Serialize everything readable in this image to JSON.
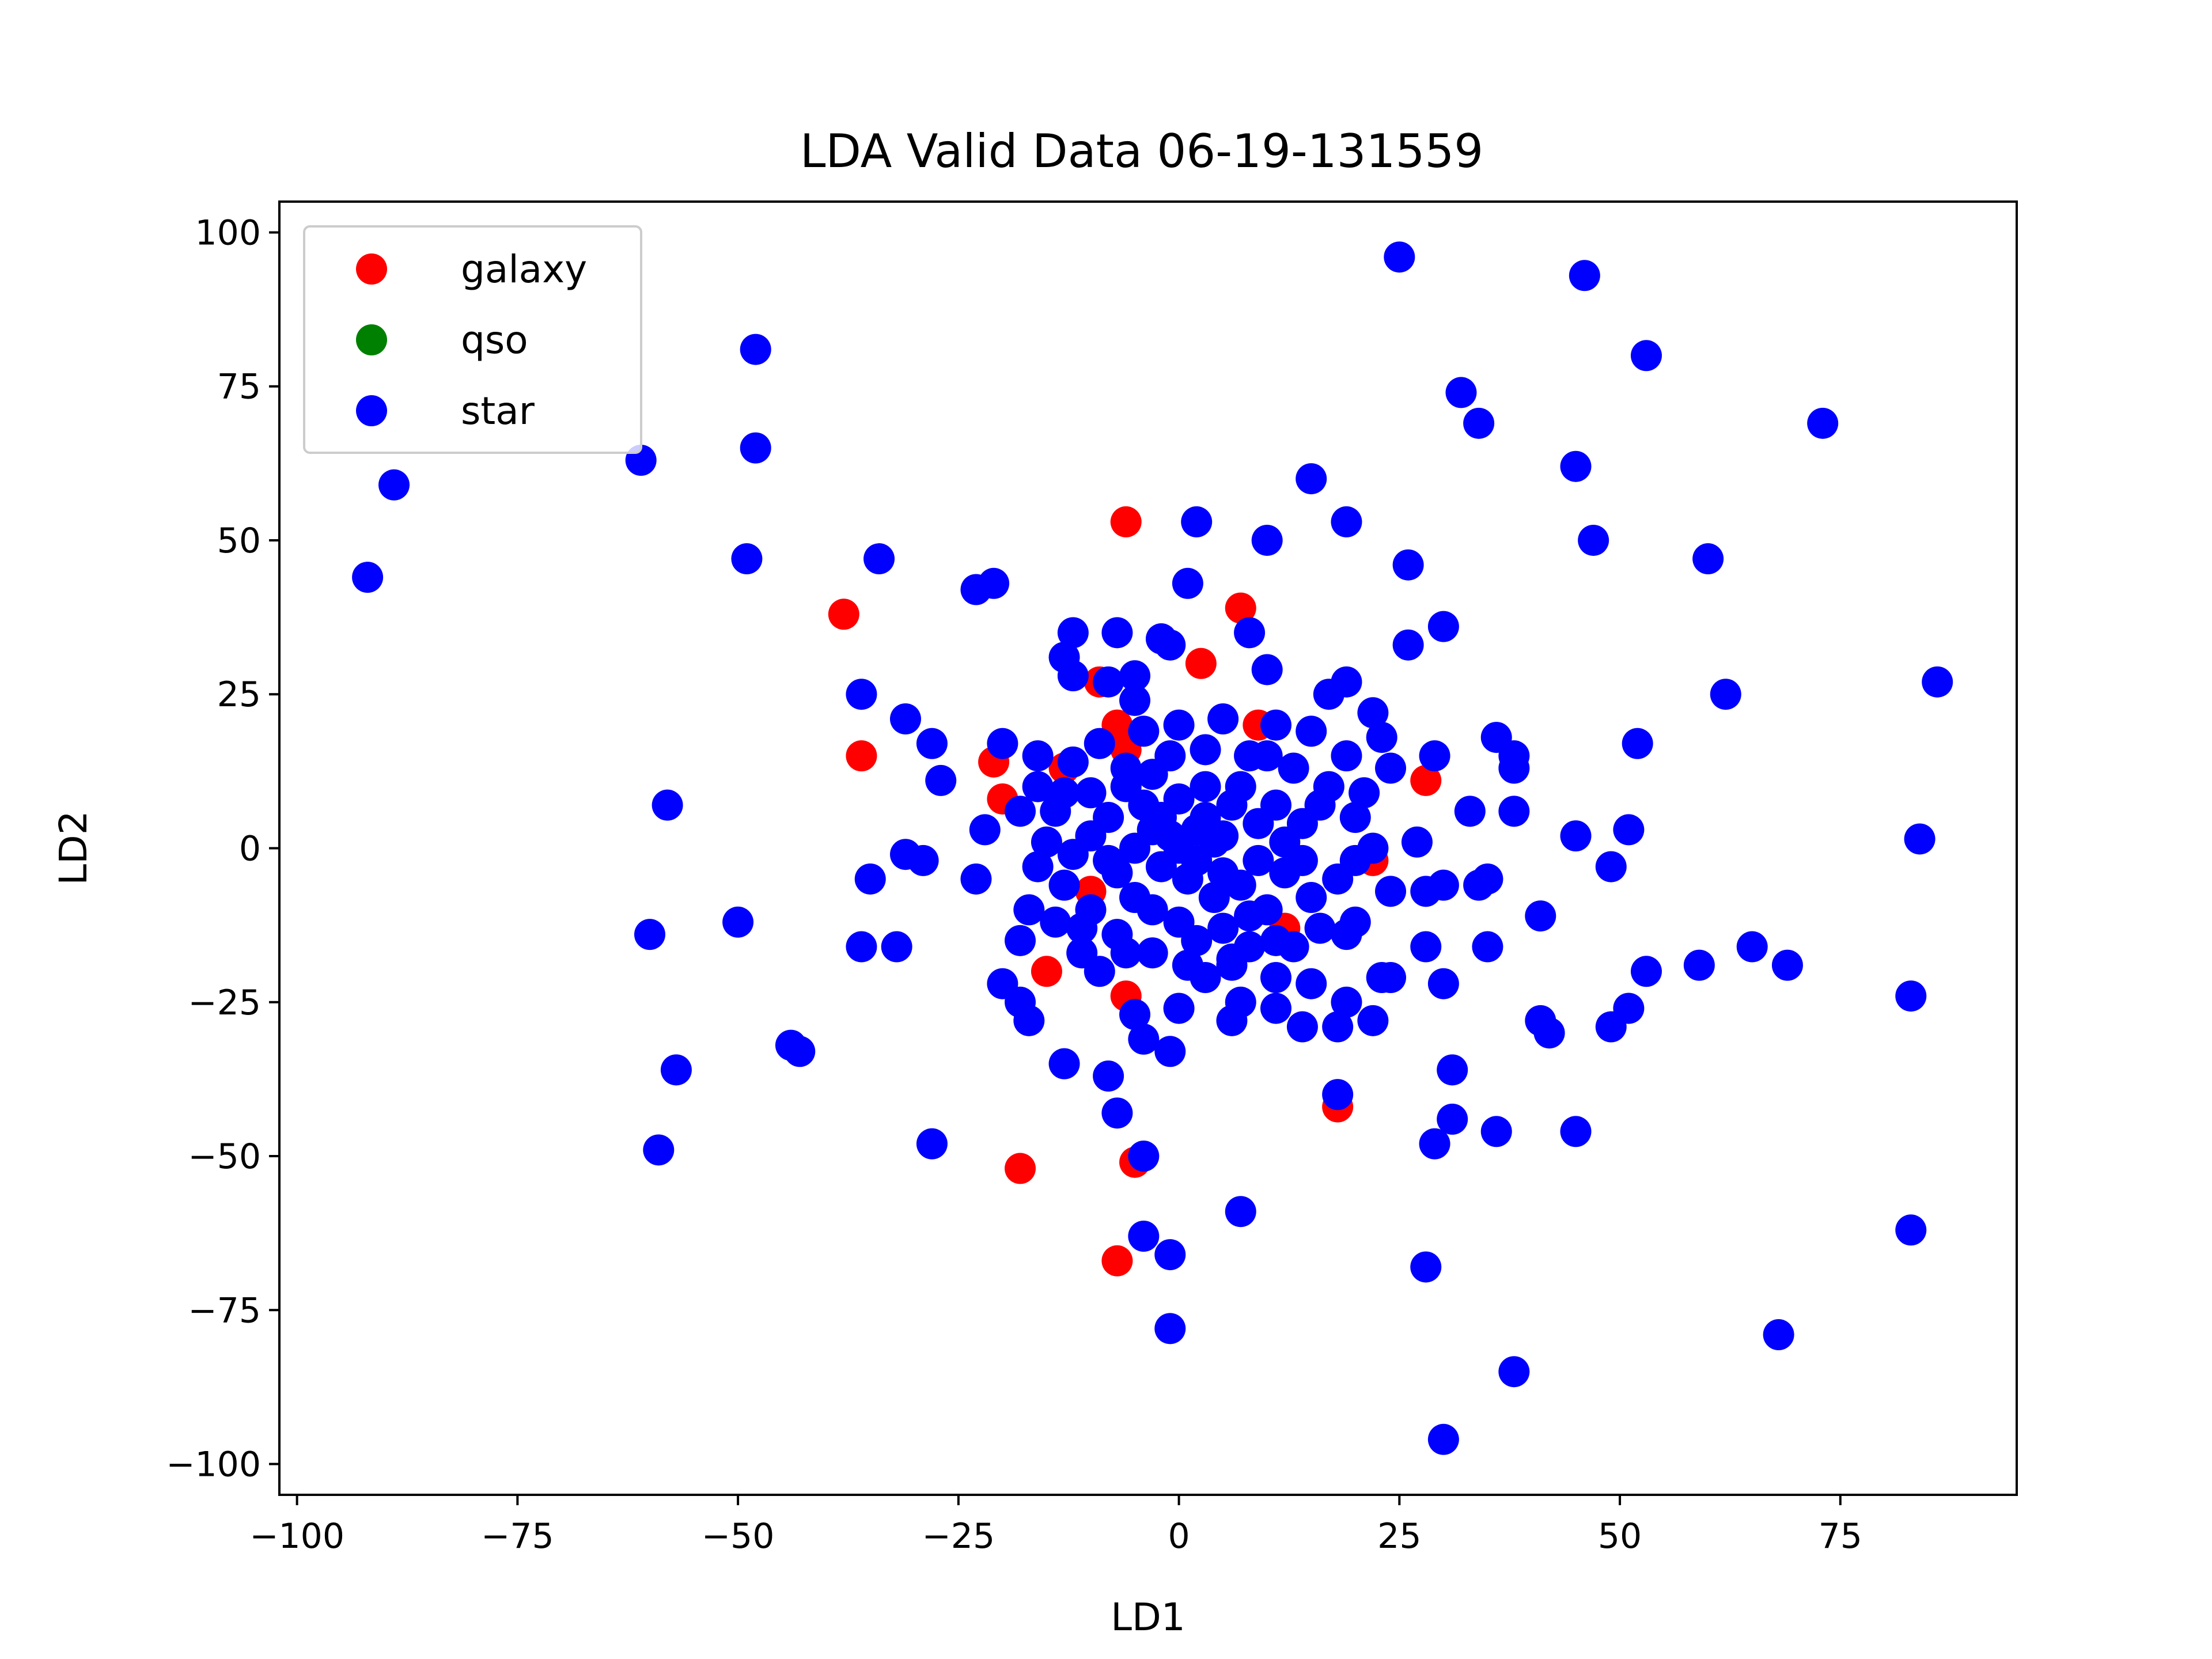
{
  "chart_data": {
    "type": "scatter",
    "title": "LDA Valid Data 06-19-131559",
    "xlabel": "LD1",
    "ylabel": "LD2",
    "xlim": [
      -102,
      95
    ],
    "ylim": [
      -105,
      105
    ],
    "xticks": [
      -100,
      -75,
      -50,
      -25,
      0,
      25,
      50,
      75
    ],
    "xtick_labels": [
      "−100",
      "−75",
      "−50",
      "−25",
      "0",
      "25",
      "50",
      "75"
    ],
    "yticks": [
      -100,
      -75,
      -50,
      -25,
      0,
      25,
      50,
      75,
      100
    ],
    "ytick_labels": [
      "−100",
      "−75",
      "−50",
      "−25",
      "0",
      "25",
      "50",
      "75",
      "100"
    ],
    "grid": false,
    "legend_position": "top-left",
    "series": [
      {
        "name": "galaxy",
        "color": "#ff0000",
        "points": [
          [
            -6,
            53
          ],
          [
            -38,
            38
          ],
          [
            7,
            39
          ],
          [
            -36,
            15
          ],
          [
            -9,
            27
          ],
          [
            2.5,
            30
          ],
          [
            -7,
            20
          ],
          [
            -6,
            16
          ],
          [
            9,
            20
          ],
          [
            -21,
            14
          ],
          [
            -20,
            8
          ],
          [
            28,
            11
          ],
          [
            22,
            -2
          ],
          [
            -15,
            -20
          ],
          [
            -6,
            -24
          ],
          [
            18,
            -42
          ],
          [
            -18,
            -52
          ],
          [
            -5,
            -51
          ],
          [
            -7,
            -67
          ],
          [
            -13,
            13
          ],
          [
            12,
            -13
          ],
          [
            -10,
            -7
          ]
        ]
      },
      {
        "name": "qso",
        "color": "#008000",
        "points": []
      },
      {
        "name": "star",
        "color": "#0000ff",
        "points": [
          [
            25,
            96
          ],
          [
            46,
            93
          ],
          [
            53,
            80
          ],
          [
            -48,
            81
          ],
          [
            32,
            74
          ],
          [
            73,
            69
          ],
          [
            34,
            69
          ],
          [
            -48,
            65
          ],
          [
            -61,
            63
          ],
          [
            45,
            62
          ],
          [
            -89,
            59
          ],
          [
            15,
            60
          ],
          [
            2,
            53
          ],
          [
            19,
            53
          ],
          [
            10,
            50
          ],
          [
            47,
            50
          ],
          [
            -92,
            44
          ],
          [
            -34,
            47
          ],
          [
            -49,
            47
          ],
          [
            60,
            47
          ],
          [
            26,
            46
          ],
          [
            -21,
            43
          ],
          [
            -23,
            42
          ],
          [
            1,
            43
          ],
          [
            86,
            27
          ],
          [
            62,
            25
          ],
          [
            -36,
            25
          ],
          [
            -31,
            21
          ],
          [
            52,
            17
          ],
          [
            -28,
            17
          ],
          [
            -27,
            11
          ],
          [
            -58,
            7
          ],
          [
            -20,
            17
          ],
          [
            -16,
            15
          ],
          [
            84,
            1.5
          ],
          [
            51,
            3
          ],
          [
            45,
            2
          ],
          [
            49,
            -3
          ],
          [
            -35,
            -5
          ],
          [
            -31,
            -1
          ],
          [
            -29,
            -2
          ],
          [
            -23,
            -5
          ],
          [
            -50,
            -12
          ],
          [
            -60,
            -14
          ],
          [
            -36,
            -16
          ],
          [
            -32,
            -16
          ],
          [
            59,
            -19
          ],
          [
            65,
            -16
          ],
          [
            69,
            -19
          ],
          [
            83,
            -24
          ],
          [
            51,
            -26
          ],
          [
            49,
            -29
          ],
          [
            53,
            -20
          ],
          [
            41,
            -28
          ],
          [
            42,
            -30
          ],
          [
            -44,
            -32
          ],
          [
            -43,
            -33
          ],
          [
            -57,
            -36
          ],
          [
            -59,
            -49
          ],
          [
            -28,
            -48
          ],
          [
            -13,
            -35
          ],
          [
            -8,
            -37
          ],
          [
            -7,
            -43
          ],
          [
            -4,
            -50
          ],
          [
            -4,
            -63
          ],
          [
            -1,
            -66
          ],
          [
            -1,
            -78
          ],
          [
            7,
            -59
          ],
          [
            18,
            -40
          ],
          [
            28,
            -68
          ],
          [
            30,
            -96
          ],
          [
            38,
            -85
          ],
          [
            68,
            -79
          ],
          [
            83,
            -62
          ],
          [
            45,
            -46
          ],
          [
            36,
            -46
          ],
          [
            29,
            -48
          ],
          [
            31,
            -44
          ],
          [
            31,
            -36
          ],
          [
            30,
            -22
          ],
          [
            28,
            -16
          ],
          [
            35,
            -16
          ],
          [
            41,
            -11
          ],
          [
            38,
            6
          ],
          [
            38,
            15
          ],
          [
            38,
            13
          ],
          [
            33,
            6
          ],
          [
            36,
            18
          ],
          [
            30,
            36
          ],
          [
            29,
            15
          ],
          [
            26,
            33
          ],
          [
            -12,
            35
          ],
          [
            -7,
            35
          ],
          [
            -2,
            34
          ],
          [
            -1,
            33
          ],
          [
            -13,
            31
          ],
          [
            -12,
            28
          ],
          [
            -8,
            27
          ],
          [
            -5,
            28
          ],
          [
            -5,
            24
          ],
          [
            8,
            35
          ],
          [
            10,
            29
          ],
          [
            17,
            25
          ],
          [
            19,
            27
          ],
          [
            22,
            22
          ],
          [
            23,
            18
          ],
          [
            24,
            13
          ],
          [
            27,
            1
          ],
          [
            28,
            -7
          ],
          [
            30,
            -6
          ],
          [
            34,
            -6
          ],
          [
            35,
            -5
          ],
          [
            -20,
            -22
          ],
          [
            -18,
            -25
          ],
          [
            -17,
            -28
          ],
          [
            -22,
            3
          ],
          [
            -18,
            6
          ],
          [
            -16,
            -3
          ],
          [
            -17,
            -10
          ],
          [
            -18,
            -15
          ],
          [
            -11,
            -17
          ],
          [
            -9,
            -20
          ],
          [
            -5,
            -27
          ],
          [
            -4,
            -31
          ],
          [
            -1,
            -33
          ],
          [
            0,
            -26
          ],
          [
            6,
            -28
          ],
          [
            7,
            -25
          ],
          [
            11,
            -21
          ],
          [
            11,
            -26
          ],
          [
            14,
            -29
          ],
          [
            15,
            -22
          ],
          [
            18,
            -29
          ],
          [
            19,
            -25
          ],
          [
            22,
            -28
          ],
          [
            24,
            -21
          ],
          [
            23,
            -21
          ],
          [
            20,
            -12
          ],
          [
            13,
            -16
          ],
          [
            8,
            -16
          ],
          [
            3,
            -21
          ],
          [
            6,
            -19
          ],
          [
            -3,
            12
          ],
          [
            0,
            8
          ],
          [
            3,
            5
          ],
          [
            5,
            2
          ],
          [
            -5,
            0
          ],
          [
            -2,
            -3
          ],
          [
            1,
            -5
          ],
          [
            4,
            -8
          ],
          [
            7,
            -6
          ],
          [
            9,
            -2
          ],
          [
            12,
            1
          ],
          [
            14,
            4
          ],
          [
            16,
            7
          ],
          [
            -8,
            5
          ],
          [
            -10,
            2
          ],
          [
            -12,
            -1
          ],
          [
            -6,
            10
          ],
          [
            -3,
            -10
          ],
          [
            0,
            -12
          ],
          [
            2,
            -15
          ],
          [
            5,
            -13
          ],
          [
            10,
            -10
          ],
          [
            15,
            -8
          ],
          [
            18,
            -5
          ],
          [
            20,
            -2
          ],
          [
            20,
            5
          ],
          [
            17,
            10
          ],
          [
            13,
            13
          ],
          [
            8,
            15
          ],
          [
            3,
            16
          ],
          [
            -1,
            15
          ],
          [
            -6,
            13
          ],
          [
            -10,
            9
          ],
          [
            -14,
            6
          ],
          [
            -15,
            1
          ],
          [
            -13,
            -6
          ],
          [
            -10,
            -10
          ],
          [
            -7,
            -14
          ],
          [
            -3,
            -17
          ],
          [
            1,
            -19
          ],
          [
            6,
            -18
          ],
          [
            11,
            -15
          ],
          [
            16,
            -13
          ],
          [
            19,
            -14
          ],
          [
            24,
            -7
          ],
          [
            22,
            0
          ],
          [
            21,
            9
          ],
          [
            19,
            15
          ],
          [
            15,
            19
          ],
          [
            11,
            20
          ],
          [
            5,
            21
          ],
          [
            0,
            20
          ],
          [
            -4,
            19
          ],
          [
            -9,
            17
          ],
          [
            -12,
            14
          ],
          [
            -16,
            10
          ],
          [
            -13,
            9
          ],
          [
            -11,
            -13
          ],
          [
            -14,
            -12
          ],
          [
            -6,
            -17
          ],
          [
            3,
            10
          ],
          [
            6,
            7
          ],
          [
            9,
            4
          ],
          [
            -2,
            5
          ],
          [
            2,
            -2
          ],
          [
            4,
            1
          ],
          [
            7,
            10
          ],
          [
            -4,
            7
          ],
          [
            -7,
            -4
          ],
          [
            -1,
            2
          ],
          [
            11,
            7
          ],
          [
            12,
            -4
          ],
          [
            8,
            -11
          ],
          [
            -5,
            -8
          ],
          [
            0,
            0
          ],
          [
            2,
            3
          ],
          [
            -3,
            3
          ],
          [
            5,
            -4
          ],
          [
            -8,
            -2
          ],
          [
            10,
            15
          ],
          [
            14,
            -2
          ]
        ]
      }
    ]
  }
}
